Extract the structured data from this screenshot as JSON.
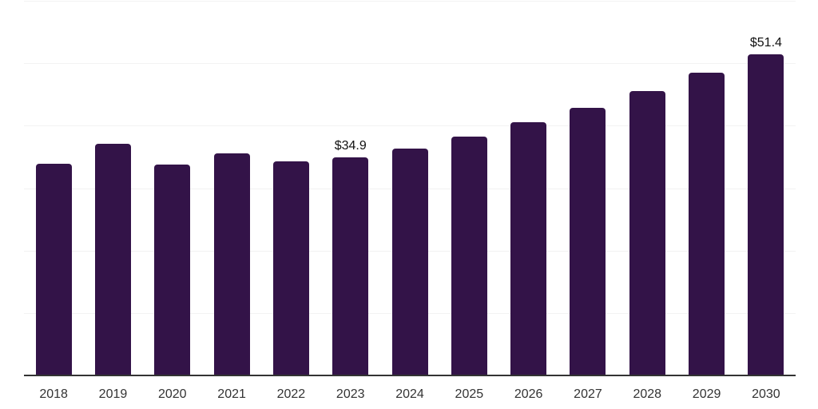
{
  "chart_data": {
    "type": "bar",
    "title": "",
    "xlabel": "",
    "ylabel": "",
    "categories": [
      "2018",
      "2019",
      "2020",
      "2021",
      "2022",
      "2023",
      "2024",
      "2025",
      "2026",
      "2027",
      "2028",
      "2029",
      "2030"
    ],
    "series": [
      {
        "name": "value",
        "values": [
          33.9,
          37.1,
          33.8,
          35.6,
          34.3,
          34.9,
          36.4,
          38.3,
          40.5,
          42.9,
          45.6,
          48.5,
          51.4
        ]
      }
    ],
    "data_labels": {
      "2023": "$34.9",
      "2030": "$51.4"
    },
    "ylim": [
      0,
      60
    ],
    "grid_step": 10,
    "grid": "horizontal-only",
    "legend": "none",
    "y_tick_labels_visible": false,
    "colors": {
      "bar": "#331348",
      "gridline": "#f2f2f2",
      "axis_line": "#333333",
      "x_tick_label": "#333333",
      "data_label": "#111111",
      "background": "#ffffff"
    }
  }
}
